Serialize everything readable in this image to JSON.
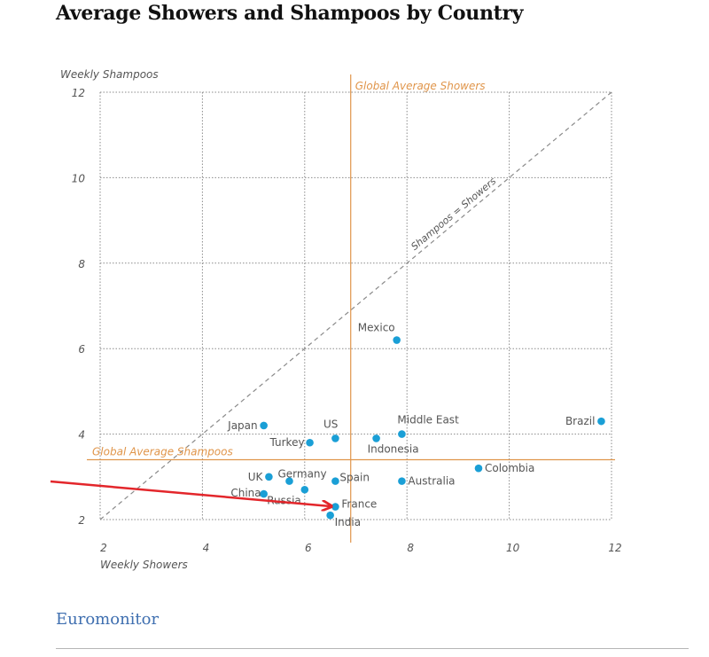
{
  "page": {
    "title": "Average Showers and Shampoos by Country",
    "source": "Euromonitor"
  },
  "colors": {
    "point": "#1a9fd6",
    "reference": "#e0954a",
    "grid": "#8a8a8a",
    "text": "#555555",
    "arrow": "#e3262b"
  },
  "chart_data": {
    "type": "scatter",
    "title": "Average Showers and Shampoos by Country",
    "xlabel": "Weekly Showers",
    "ylabel": "Weekly Shampoos",
    "xlim": [
      2,
      12
    ],
    "ylim": [
      2,
      12
    ],
    "xticks": [
      2,
      4,
      6,
      8,
      10,
      12
    ],
    "yticks": [
      2,
      4,
      6,
      8,
      10,
      12
    ],
    "grid": true,
    "reference_lines": {
      "global_average_showers": {
        "value": 6.9,
        "label": "Global Average Showers"
      },
      "global_average_shampoos": {
        "value": 3.4,
        "label": "Global Average Shampoos"
      },
      "diagonal_label": "Shampoos = Showers"
    },
    "points": [
      {
        "name": "Mexico",
        "x": 7.8,
        "y": 6.2
      },
      {
        "name": "Japan",
        "x": 5.2,
        "y": 4.2
      },
      {
        "name": "US",
        "x": 6.6,
        "y": 3.9
      },
      {
        "name": "Turkey",
        "x": 6.1,
        "y": 3.8
      },
      {
        "name": "Middle East",
        "x": 7.9,
        "y": 4.0
      },
      {
        "name": "Indonesia",
        "x": 7.4,
        "y": 3.9
      },
      {
        "name": "Brazil",
        "x": 11.8,
        "y": 4.3
      },
      {
        "name": "Colombia",
        "x": 9.4,
        "y": 3.2
      },
      {
        "name": "UK",
        "x": 5.3,
        "y": 3.0
      },
      {
        "name": "Germany",
        "x": 5.7,
        "y": 2.9
      },
      {
        "name": "Spain",
        "x": 6.6,
        "y": 2.9
      },
      {
        "name": "Australia",
        "x": 7.9,
        "y": 2.9
      },
      {
        "name": "China",
        "x": 5.2,
        "y": 2.6
      },
      {
        "name": "Russia",
        "x": 6.0,
        "y": 2.7
      },
      {
        "name": "France",
        "x": 6.6,
        "y": 2.3
      },
      {
        "name": "India",
        "x": 6.5,
        "y": 2.1
      }
    ]
  }
}
